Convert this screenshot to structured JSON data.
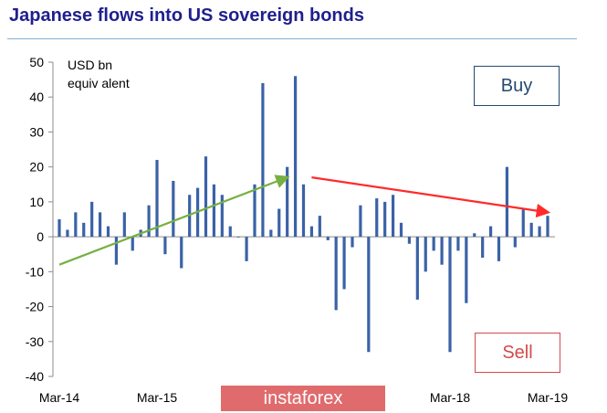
{
  "chart_data": {
    "type": "bar",
    "title": "Japanese flows into US sovereign bonds",
    "unit_note_line1": "USD bn",
    "unit_note_line2": "equiv alent",
    "ylim": [
      -40,
      50
    ],
    "yticks": [
      50,
      40,
      30,
      20,
      10,
      0,
      -10,
      -20,
      -30,
      -40
    ],
    "xtick_labels": [
      "Mar-14",
      "Mar-15",
      "Mar-18",
      "Mar-19"
    ],
    "x": [
      "Mar-14",
      "Apr-14",
      "May-14",
      "Jun-14",
      "Jul-14",
      "Aug-14",
      "Sep-14",
      "Oct-14",
      "Nov-14",
      "Dec-14",
      "Jan-15",
      "Feb-15",
      "Mar-15",
      "Apr-15",
      "May-15",
      "Jun-15",
      "Jul-15",
      "Aug-15",
      "Sep-15",
      "Oct-15",
      "Nov-15",
      "Dec-15",
      "Jan-16",
      "Feb-16",
      "Mar-16",
      "Apr-16",
      "May-16",
      "Jun-16",
      "Jul-16",
      "Aug-16",
      "Sep-16",
      "Oct-16",
      "Nov-16",
      "Dec-16",
      "Jan-17",
      "Feb-17",
      "Mar-17",
      "Apr-17",
      "May-17",
      "Jun-17",
      "Jul-17",
      "Aug-17",
      "Sep-17",
      "Oct-17",
      "Nov-17",
      "Dec-17",
      "Jan-18",
      "Feb-18",
      "Mar-18",
      "Apr-18",
      "May-18",
      "Jun-18",
      "Jul-18",
      "Aug-18",
      "Sep-18",
      "Oct-18",
      "Nov-18",
      "Dec-18",
      "Jan-19",
      "Feb-19",
      "Mar-19"
    ],
    "values": [
      5,
      2,
      7,
      4,
      10,
      7,
      3,
      -8,
      7,
      -4,
      2,
      9,
      22,
      -5,
      16,
      -9,
      12,
      14,
      23,
      15,
      12,
      3,
      0,
      -7,
      15,
      44,
      2,
      8,
      20,
      46,
      15,
      3,
      6,
      -1,
      -21,
      -15,
      -3,
      9,
      -33,
      11,
      10,
      12,
      4,
      -2,
      -18,
      -10,
      -4,
      -8,
      -33,
      -4,
      -19,
      1,
      -6,
      3,
      -7,
      20,
      -3,
      8,
      4,
      3,
      6
    ],
    "annotations": {
      "buy": "Buy",
      "sell": "Sell"
    },
    "trend_lines": [
      {
        "label": "rising",
        "from": [
          "Mar-14",
          -8
        ],
        "to": [
          "Jul-16",
          17
        ],
        "color": "#76b041"
      },
      {
        "label": "falling",
        "from": [
          "Oct-16",
          17
        ],
        "to": [
          "Mar-19",
          7
        ],
        "color": "#ff2a2a"
      }
    ],
    "bar_color": "#3a62a7",
    "grid": false
  },
  "watermark": "instaforex"
}
